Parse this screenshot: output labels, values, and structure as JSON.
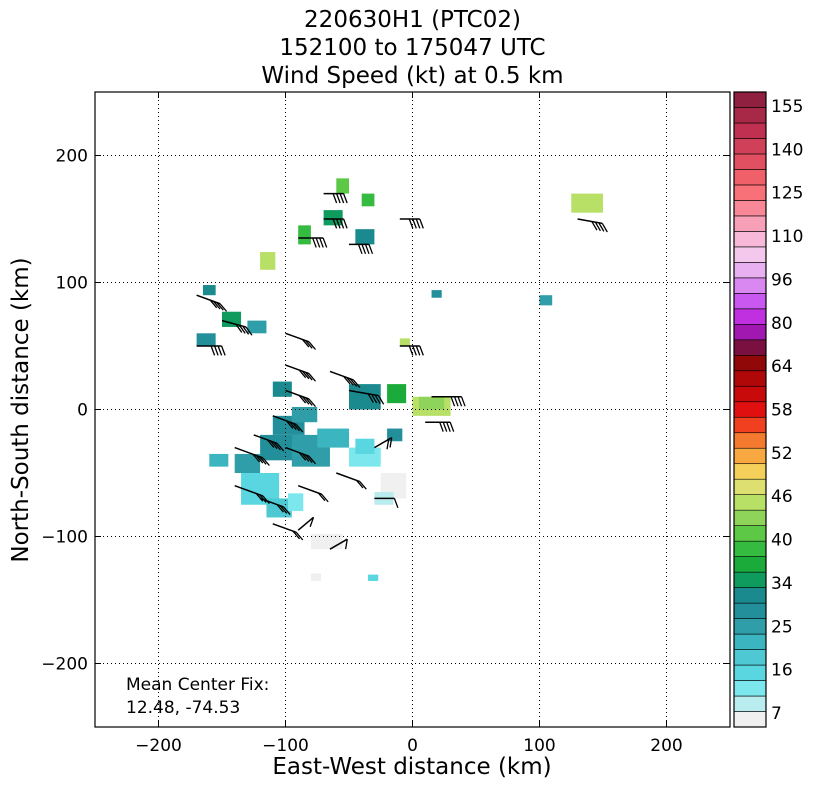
{
  "chart_data": {
    "type": "heatmap",
    "title_lines": [
      "220630H1 (PTC02)",
      "152100 to 175047 UTC",
      "Wind Speed (kt) at 0.5 km"
    ],
    "xlabel": "East-West distance (km)",
    "ylabel": "North-South distance (km)",
    "xlim": [
      -250,
      250
    ],
    "ylim": [
      -250,
      250
    ],
    "xticks": [
      -200,
      -100,
      0,
      100,
      200
    ],
    "yticks": [
      -200,
      -100,
      0,
      100,
      200
    ],
    "xtick_labels": [
      "−200",
      "−100",
      "0",
      "100",
      "200"
    ],
    "ytick_labels": [
      "−200",
      "−100",
      "0",
      "100",
      "200"
    ],
    "grid": true,
    "annotation_lines": [
      "Mean Center Fix:",
      "12.48, -74.53"
    ],
    "colorbar": {
      "labels": [
        "155",
        "140",
        "125",
        "110",
        "96",
        "80",
        "64",
        "58",
        "52",
        "46",
        "40",
        "34",
        "25",
        "16",
        "7"
      ],
      "colors": [
        "#f0f0f0",
        "#b9ecef",
        "#7ce8ee",
        "#5ad6e0",
        "#4ec9d4",
        "#3bb5c0",
        "#2f9ea8",
        "#238f9a",
        "#1a8a8e",
        "#0f9a5e",
        "#1aab3a",
        "#34bb40",
        "#5cc846",
        "#8fd45a",
        "#b8e066",
        "#dde070",
        "#f4d05a",
        "#f7a840",
        "#f47a30",
        "#f04020",
        "#e01010",
        "#c80a0a",
        "#b00808",
        "#900808",
        "#7a1040",
        "#a018b0",
        "#c030e0",
        "#c858f0",
        "#d888f0",
        "#e8b0f0",
        "#f4c8ec",
        "#f8b8d8",
        "#f8a0b8",
        "#f88898",
        "#f87078",
        "#f06068",
        "#e05060",
        "#d04058",
        "#c03050",
        "#a82848",
        "#902040"
      ]
    },
    "patches": [
      {
        "x": -135,
        "y": -75,
        "w": 30,
        "h": 25,
        "color": "#5ad6e0"
      },
      {
        "x": -115,
        "y": -85,
        "w": 20,
        "h": 15,
        "color": "#4ec9d4"
      },
      {
        "x": -98,
        "y": -80,
        "w": 12,
        "h": 14,
        "color": "#7ce8ee"
      },
      {
        "x": -80,
        "y": -110,
        "w": 25,
        "h": 12,
        "color": "#f0f0f0"
      },
      {
        "x": -140,
        "y": -50,
        "w": 20,
        "h": 15,
        "color": "#2f9ea8"
      },
      {
        "x": -160,
        "y": -45,
        "w": 15,
        "h": 10,
        "color": "#3bb5c0"
      },
      {
        "x": -120,
        "y": -40,
        "w": 30,
        "h": 20,
        "color": "#238f9a"
      },
      {
        "x": -95,
        "y": -45,
        "w": 30,
        "h": 25,
        "color": "#2f9ea8"
      },
      {
        "x": -75,
        "y": -30,
        "w": 25,
        "h": 15,
        "color": "#3bb5c0"
      },
      {
        "x": -50,
        "y": -45,
        "w": 25,
        "h": 15,
        "color": "#7ce8ee"
      },
      {
        "x": -45,
        "y": -35,
        "w": 15,
        "h": 12,
        "color": "#5ad6e0"
      },
      {
        "x": -25,
        "y": -70,
        "w": 20,
        "h": 20,
        "color": "#f0f0f0"
      },
      {
        "x": -30,
        "y": -75,
        "w": 15,
        "h": 10,
        "color": "#b9ecef"
      },
      {
        "x": -110,
        "y": -20,
        "w": 25,
        "h": 15,
        "color": "#238f9a"
      },
      {
        "x": -95,
        "y": -10,
        "w": 20,
        "h": 12,
        "color": "#2f9ea8"
      },
      {
        "x": -110,
        "y": 10,
        "w": 15,
        "h": 12,
        "color": "#1a8a8e"
      },
      {
        "x": -50,
        "y": 0,
        "w": 25,
        "h": 20,
        "color": "#1a8a8e"
      },
      {
        "x": -20,
        "y": 5,
        "w": 15,
        "h": 15,
        "color": "#1aab3a"
      },
      {
        "x": 0,
        "y": -5,
        "w": 30,
        "h": 15,
        "color": "#b8e066"
      },
      {
        "x": 5,
        "y": 0,
        "w": 20,
        "h": 10,
        "color": "#8fd45a"
      },
      {
        "x": -20,
        "y": -25,
        "w": 12,
        "h": 10,
        "color": "#238f9a"
      },
      {
        "x": -150,
        "y": 65,
        "w": 15,
        "h": 12,
        "color": "#0f9a5e"
      },
      {
        "x": -130,
        "y": 60,
        "w": 15,
        "h": 10,
        "color": "#2f9ea8"
      },
      {
        "x": -170,
        "y": 50,
        "w": 15,
        "h": 10,
        "color": "#238f9a"
      },
      {
        "x": -165,
        "y": 90,
        "w": 10,
        "h": 8,
        "color": "#1a8a8e"
      },
      {
        "x": -120,
        "y": 110,
        "w": 12,
        "h": 14,
        "color": "#b8e066"
      },
      {
        "x": -90,
        "y": 130,
        "w": 10,
        "h": 15,
        "color": "#34bb40"
      },
      {
        "x": -70,
        "y": 145,
        "w": 15,
        "h": 12,
        "color": "#0f9a5e"
      },
      {
        "x": -60,
        "y": 170,
        "w": 10,
        "h": 12,
        "color": "#5cc846"
      },
      {
        "x": -45,
        "y": 130,
        "w": 15,
        "h": 12,
        "color": "#1a8a8e"
      },
      {
        "x": -40,
        "y": 160,
        "w": 10,
        "h": 10,
        "color": "#34bb40"
      },
      {
        "x": -10,
        "y": 50,
        "w": 8,
        "h": 6,
        "color": "#b8e066"
      },
      {
        "x": 100,
        "y": 82,
        "w": 10,
        "h": 8,
        "color": "#2f9ea8"
      },
      {
        "x": 125,
        "y": 155,
        "w": 25,
        "h": 15,
        "color": "#b8e066"
      },
      {
        "x": 15,
        "y": 88,
        "w": 8,
        "h": 6,
        "color": "#238f9a"
      },
      {
        "x": -80,
        "y": -135,
        "w": 8,
        "h": 6,
        "color": "#f0f0f0"
      },
      {
        "x": -35,
        "y": -135,
        "w": 8,
        "h": 5,
        "color": "#5ad6e0"
      }
    ],
    "barbs": [
      {
        "x": -170,
        "y": 90,
        "len": 25,
        "angle": -20,
        "flags": 4
      },
      {
        "x": -150,
        "y": 70,
        "len": 25,
        "angle": -15,
        "flags": 4
      },
      {
        "x": -170,
        "y": 50,
        "len": 25,
        "angle": 0,
        "flags": 4
      },
      {
        "x": -100,
        "y": 60,
        "len": 25,
        "angle": -20,
        "flags": 3
      },
      {
        "x": -100,
        "y": 35,
        "len": 25,
        "angle": -20,
        "flags": 4
      },
      {
        "x": -100,
        "y": 15,
        "len": 25,
        "angle": -20,
        "flags": 4
      },
      {
        "x": -50,
        "y": 15,
        "len": 30,
        "angle": -10,
        "flags": 4
      },
      {
        "x": -140,
        "y": -30,
        "len": 30,
        "angle": -20,
        "flags": 4
      },
      {
        "x": -125,
        "y": -20,
        "len": 25,
        "angle": -20,
        "flags": 4
      },
      {
        "x": -110,
        "y": -5,
        "len": 25,
        "angle": -20,
        "flags": 4
      },
      {
        "x": -100,
        "y": -30,
        "len": 25,
        "angle": -20,
        "flags": 4
      },
      {
        "x": -65,
        "y": 30,
        "len": 25,
        "angle": -20,
        "flags": 4
      },
      {
        "x": -140,
        "y": -60,
        "len": 30,
        "angle": -20,
        "flags": 3
      },
      {
        "x": -120,
        "y": -70,
        "len": 25,
        "angle": -20,
        "flags": 3
      },
      {
        "x": -110,
        "y": -90,
        "len": 25,
        "angle": -20,
        "flags": 2
      },
      {
        "x": -90,
        "y": -60,
        "len": 25,
        "angle": -20,
        "flags": 2
      },
      {
        "x": -60,
        "y": -50,
        "len": 25,
        "angle": -20,
        "flags": 2
      },
      {
        "x": -30,
        "y": -30,
        "len": 20,
        "angle": 30,
        "flags": 2
      },
      {
        "x": -30,
        "y": -70,
        "len": 20,
        "angle": 0,
        "flags": 1
      },
      {
        "x": 15,
        "y": 10,
        "len": 30,
        "angle": 0,
        "flags": 4
      },
      {
        "x": 10,
        "y": -10,
        "len": 25,
        "angle": 0,
        "flags": 4
      },
      {
        "x": -10,
        "y": 50,
        "len": 20,
        "angle": 0,
        "flags": 4
      },
      {
        "x": -70,
        "y": 170,
        "len": 20,
        "angle": 0,
        "flags": 4
      },
      {
        "x": -70,
        "y": 150,
        "len": 20,
        "angle": 0,
        "flags": 4
      },
      {
        "x": -90,
        "y": 135,
        "len": 25,
        "angle": 0,
        "flags": 4
      },
      {
        "x": -50,
        "y": 130,
        "len": 20,
        "angle": 0,
        "flags": 4
      },
      {
        "x": -10,
        "y": 150,
        "len": 20,
        "angle": 0,
        "flags": 4
      },
      {
        "x": 130,
        "y": 150,
        "len": 25,
        "angle": -10,
        "flags": 4
      },
      {
        "x": -65,
        "y": -110,
        "len": 20,
        "angle": 30,
        "flags": 1
      },
      {
        "x": -90,
        "y": -95,
        "len": 20,
        "angle": 40,
        "flags": 1
      }
    ]
  }
}
